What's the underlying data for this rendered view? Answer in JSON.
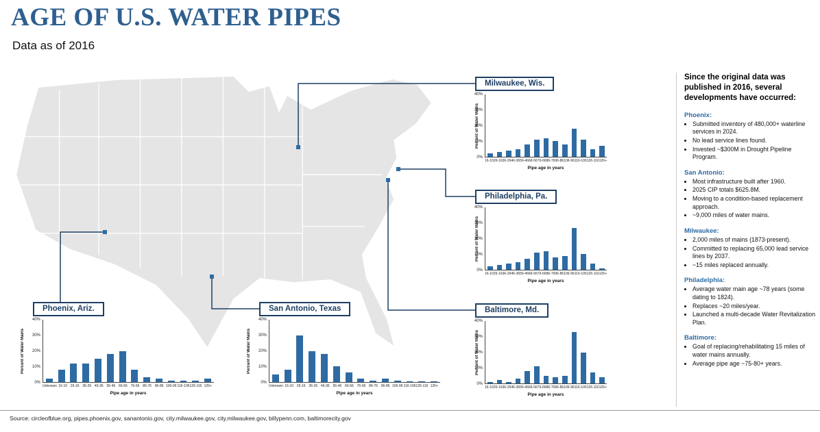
{
  "page": {
    "title": "AGE OF U.S. WATER PIPES",
    "subtitle": "Data as of 2016",
    "source": "Source: circleofblue.org, pipes.phoenix.gov, sanantonio.gov, city.milwaukee.gov, city.milwaukee.gov, billypenn.com, baltimorecity.gov"
  },
  "colors": {
    "title": "#2e5f8f",
    "bar": "#2e6ba3",
    "label_box_border": "#1d3f63",
    "map_fill": "#e5e5e5",
    "accent_blue": "#2e6ba3"
  },
  "charts_common": {
    "ylabel": "Percent of Water Mains",
    "xlabel": "Pipe age in years",
    "yticks": [
      "40%",
      "30%",
      "20%",
      "10%",
      "0%"
    ],
    "ylim": [
      0,
      40
    ]
  },
  "chart_data": [
    {
      "type": "bar",
      "title": "Milwaukee, Wis.",
      "ylabel": "Percent of Water Mains",
      "xlabel": "Pipe age in years",
      "ylim": [
        0,
        40
      ],
      "categories": [
        "16-10",
        "26-16",
        "36-26",
        "46-36",
        "56-46",
        "66-56",
        "76-66",
        "86-76",
        "96-86",
        "106-96",
        "116-106",
        "126-116",
        "126+"
      ],
      "values": [
        2,
        3,
        4,
        5,
        8,
        11,
        12,
        10,
        8,
        18,
        11,
        5,
        7
      ]
    },
    {
      "type": "bar",
      "title": "Philadelphia, Pa.",
      "ylabel": "Percent of Water Mains",
      "xlabel": "Pipe age in years",
      "ylim": [
        0,
        40
      ],
      "categories": [
        "16-10",
        "26-16",
        "36-26",
        "46-36",
        "56-46",
        "66-56",
        "76-66",
        "86-76",
        "96-86",
        "106-96",
        "116-106",
        "126-116",
        "126+"
      ],
      "values": [
        2,
        3,
        4,
        5,
        7,
        11,
        12,
        8,
        9,
        27,
        10,
        4,
        1
      ]
    },
    {
      "type": "bar",
      "title": "Phoenix, Ariz.",
      "ylabel": "Percent of Water Mains",
      "xlabel": "Pipe age in years",
      "ylim": [
        0,
        40
      ],
      "categories": [
        "Unknown",
        "16-10",
        "26-16",
        "36-26",
        "46-36",
        "56-46",
        "66-56",
        "76-66",
        "86-76",
        "96-86",
        "106-96",
        "116-106",
        "126-116",
        "126+"
      ],
      "values": [
        2,
        8,
        12,
        12,
        15,
        18,
        20,
        8,
        3,
        2,
        1,
        1,
        1,
        2
      ]
    },
    {
      "type": "bar",
      "title": "San Antonio, Texas",
      "ylabel": "Percent of Water Mains",
      "xlabel": "Pipe age in years",
      "ylim": [
        0,
        40
      ],
      "categories": [
        "Unknown",
        "16-10",
        "26-16",
        "36-26",
        "46-36",
        "56-46",
        "66-56",
        "76-66",
        "86-76",
        "96-86",
        "106-96",
        "116-106",
        "126-116",
        "126+"
      ],
      "values": [
        5,
        8,
        30,
        20,
        18,
        10,
        6,
        2,
        1,
        2,
        1,
        0.5,
        0.5,
        0.5
      ]
    },
    {
      "type": "bar",
      "title": "Baltimore, Md.",
      "ylabel": "Percent of Water Mains",
      "xlabel": "Pipe age in years",
      "ylim": [
        0,
        40
      ],
      "categories": [
        "16-10",
        "26-16",
        "36-26",
        "46-36",
        "56-46",
        "66-56",
        "76-66",
        "86-76",
        "96-86",
        "106-96",
        "116-106",
        "126-116",
        "126+"
      ],
      "values": [
        1,
        2,
        1,
        3,
        8,
        11,
        5,
        4,
        5,
        33,
        20,
        7,
        4
      ]
    }
  ],
  "sidebar": {
    "heading": "Since the original data was published in 2016, several developments have occurred:",
    "sections": [
      {
        "city": "Phoenix:",
        "bullets": [
          "Submitted inventory of 480,000+ waterline services in 2024.",
          "No lead service lines found.",
          "Invested ~$300M in Drought Pipeline Program."
        ]
      },
      {
        "city": "San Antonio:",
        "bullets": [
          "Most infrastructure built after 1960.",
          "2025 CIP totals $625.8M.",
          "Moving to a condition-based replacement approach.",
          "~9,000 miles of water mains."
        ]
      },
      {
        "city": "Milwaukee:",
        "bullets": [
          "2,000 miles of mains (1873-present).",
          "Committed to replacing 65,000 lead service lines by 2037.",
          "~15 miles replaced annually."
        ]
      },
      {
        "city": "Philadelphia:",
        "bullets": [
          "Average water main age ~78 years (some dating to 1824).",
          "Replaces ~20 miles/year.",
          "Launched a multi-decade Water Revitalization Plan."
        ]
      },
      {
        "city": "Baltimore:",
        "bullets": [
          "Goal of replacing/rehabilitating 15 miles of water mains annually.",
          "Average pipe age ~75-80+ years."
        ]
      }
    ]
  }
}
